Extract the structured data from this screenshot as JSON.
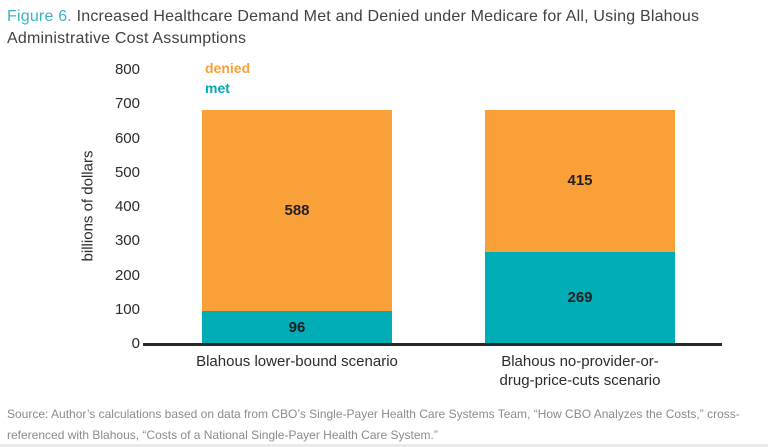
{
  "title": {
    "prefix": "Figure 6.",
    "text": "Increased Healthcare Demand Met and Denied under Medicare for All, Using Blahous Administrative Cost Assumptions"
  },
  "source": {
    "line1": "Source: Author’s calculations based on data from CBO’s Single-Payer Health Care Systems Team, “How CBO Analyzes the Costs,” cross-",
    "line2": "referenced with Blahous, “Costs of a National Single-Payer Health Care System.”"
  },
  "colors": {
    "figure_label": "#3FB1C5",
    "title_text": "#414042",
    "denied": "#FAA038",
    "met": "#00ACB5",
    "axis_line": "#29292B",
    "tick_text": "#2B2B2B",
    "value_text": "#231F20",
    "source_text": "#898B8E"
  },
  "chart_data": {
    "type": "bar",
    "stacked": true,
    "title": "Increased Healthcare Demand Met and Denied under Medicare for All, Using Blahous Administrative Cost Assumptions",
    "ylabel": "billions of dollars",
    "xlabel": "",
    "ylim": [
      0,
      800
    ],
    "yticks": [
      0,
      100,
      200,
      300,
      400,
      500,
      600,
      700,
      800
    ],
    "grid": false,
    "legend_position": "top-left-inside",
    "legend_entries": [
      "denied",
      "met"
    ],
    "categories": [
      {
        "label": "Blahous lower-bound scenario",
        "lines": [
          "Blahous lower-bound scenario"
        ]
      },
      {
        "label": "Blahous no-provider-or-drug-price-cuts scenario",
        "lines": [
          "Blahous no-provider-or-",
          "drug-price-cuts scenario"
        ]
      }
    ],
    "series": [
      {
        "name": "met",
        "color": "#00ACB5",
        "values": [
          96,
          269
        ]
      },
      {
        "name": "denied",
        "color": "#FAA038",
        "values": [
          588,
          415
        ]
      }
    ],
    "totals": [
      684,
      684
    ]
  }
}
